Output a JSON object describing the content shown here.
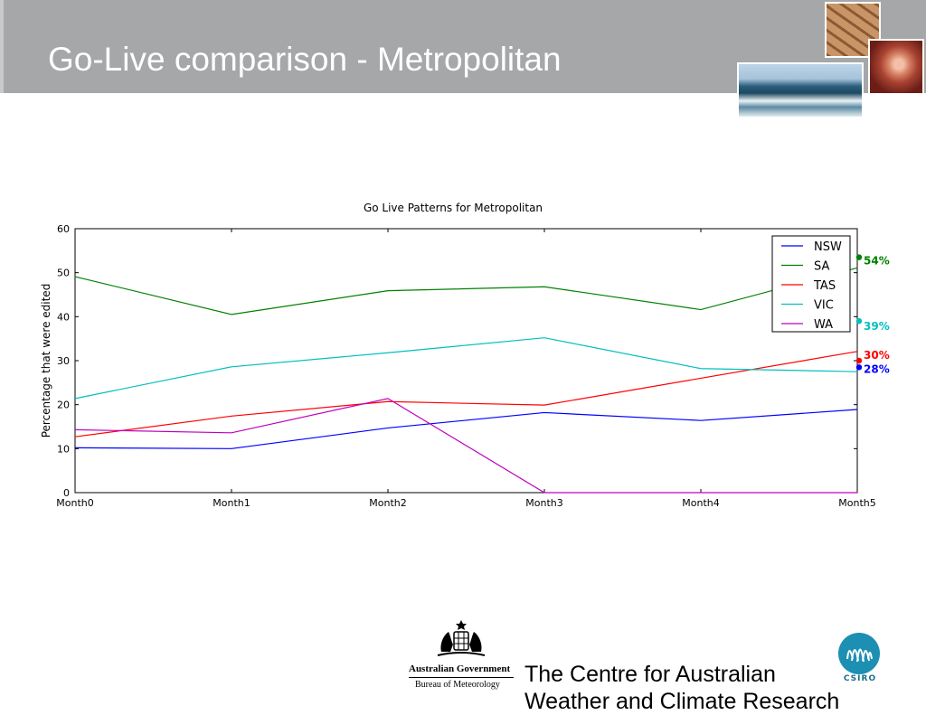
{
  "slide": {
    "title": "Go-Live comparison - Metropolitan",
    "footer_title": "The Centre for Australian",
    "footer_title_line2": "Weather and Climate Research",
    "gov_name": "Australian Government",
    "gov_dept": "Bureau of Meteorology",
    "csiro": "CSIRO"
  },
  "colors": {
    "title_bar": "#a5a7a9",
    "csiro": "#1c8fb3"
  },
  "chart_data": {
    "type": "line",
    "title": "Go Live Patterns for Metropolitan",
    "xlabel": "",
    "ylabel": "Percentage that were edited",
    "categories": [
      "Month0",
      "Month1",
      "Month2",
      "Month3",
      "Month4",
      "Month5"
    ],
    "ylim": [
      0,
      60
    ],
    "yticks": [
      0,
      10,
      20,
      30,
      40,
      50,
      60
    ],
    "grid": false,
    "legend_position": "top-right",
    "series": [
      {
        "name": "NSW",
        "color": "#0000ff",
        "values": [
          10.2,
          10.0,
          14.7,
          18.2,
          16.4,
          18.9
        ]
      },
      {
        "name": "SA",
        "color": "#008000",
        "values": [
          49.1,
          40.5,
          45.9,
          46.8,
          41.6,
          51.1
        ]
      },
      {
        "name": "TAS",
        "color": "#ff0000",
        "values": [
          12.7,
          17.4,
          20.7,
          19.9,
          26.0,
          32.1
        ]
      },
      {
        "name": "VIC",
        "color": "#00bfbf",
        "values": [
          21.4,
          28.6,
          31.8,
          35.2,
          28.2,
          27.5
        ]
      },
      {
        "name": "WA",
        "color": "#bf00bf",
        "values": [
          14.3,
          13.6,
          21.4,
          0.0,
          0.0,
          0.0
        ]
      }
    ],
    "annotations": [
      {
        "label": "54%",
        "value": 53.5,
        "color": "#008000"
      },
      {
        "label": "39%",
        "value": 39.0,
        "color": "#00bfbf"
      },
      {
        "label": "30%",
        "value": 30.0,
        "color": "#ff0000"
      },
      {
        "label": "28%",
        "value": 28.5,
        "color": "#0000ff"
      }
    ]
  }
}
